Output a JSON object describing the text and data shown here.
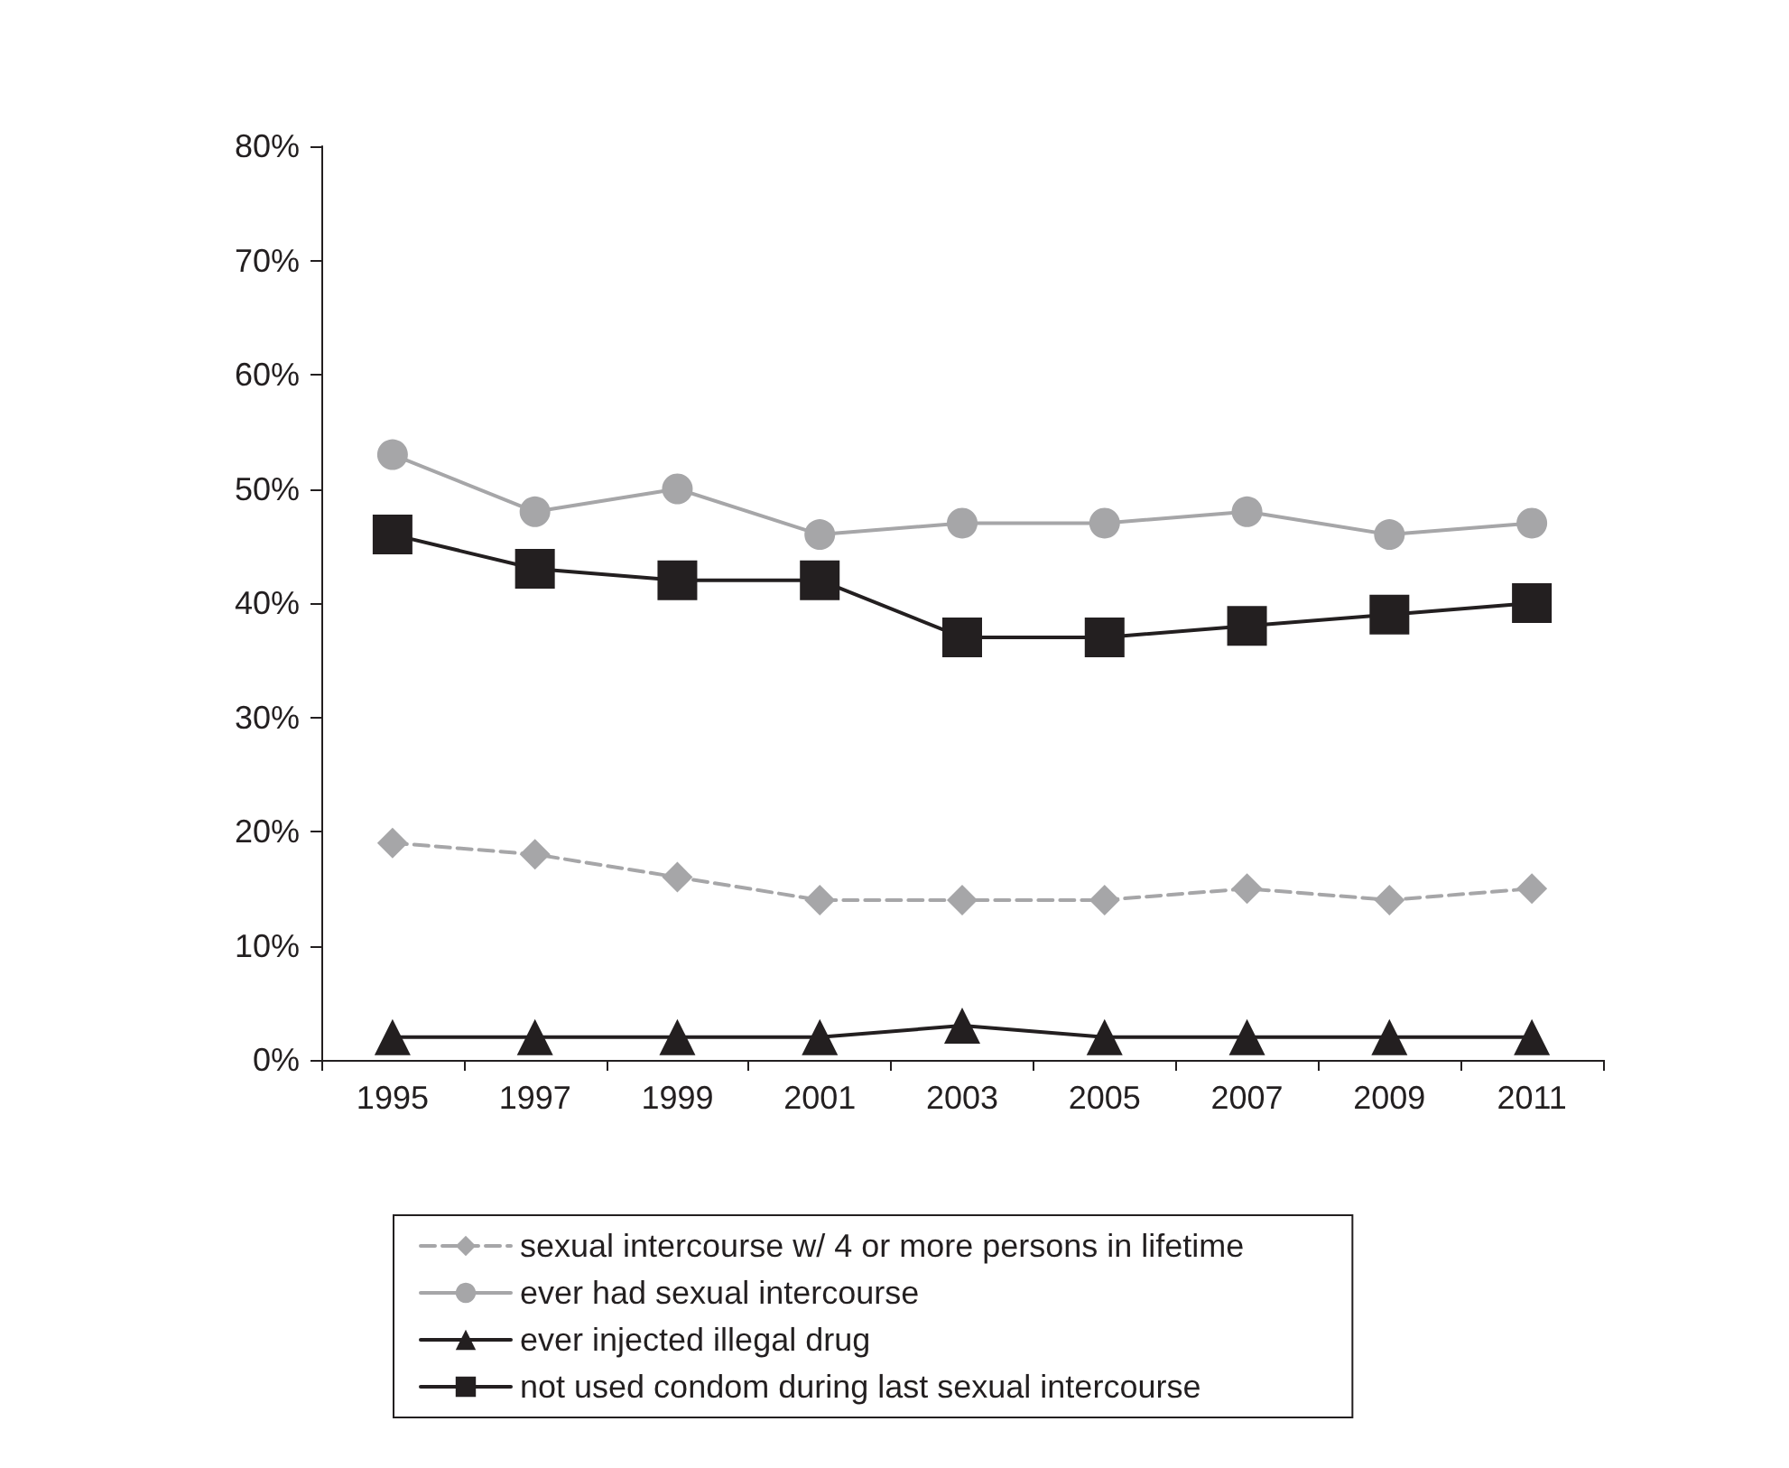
{
  "chart_data": {
    "type": "line",
    "categories": [
      "1995",
      "1997",
      "1999",
      "2001",
      "2003",
      "2005",
      "2007",
      "2009",
      "2011"
    ],
    "series": [
      {
        "name": "sexual intercourse w/ 4 or more persons in lifetime",
        "color": "#a6a6a8",
        "marker": "diamond",
        "line_style": "dashed",
        "values": [
          19,
          18,
          16,
          14,
          14,
          14,
          15,
          14,
          15
        ]
      },
      {
        "name": "ever had sexual intercourse",
        "color": "#a6a6a8",
        "marker": "circle",
        "line_style": "solid",
        "values": [
          53,
          48,
          50,
          46,
          47,
          47,
          48,
          46,
          47
        ]
      },
      {
        "name": "ever injected illegal drug",
        "color": "#231f20",
        "marker": "triangle",
        "line_style": "solid",
        "values": [
          2,
          2,
          2,
          2,
          3,
          2,
          2,
          2,
          2
        ]
      },
      {
        "name": "not used condom during last sexual intercourse",
        "color": "#231f20",
        "marker": "square",
        "line_style": "solid",
        "values": [
          46,
          43,
          42,
          42,
          37,
          37,
          38,
          39,
          40
        ]
      }
    ],
    "ylim": [
      0,
      80
    ],
    "yticks": [
      {
        "value": 0,
        "label": "0%"
      },
      {
        "value": 10,
        "label": "10%"
      },
      {
        "value": 20,
        "label": "20%"
      },
      {
        "value": 30,
        "label": "30%"
      },
      {
        "value": 40,
        "label": "40%"
      },
      {
        "value": 50,
        "label": "50%"
      },
      {
        "value": 60,
        "label": "60%"
      },
      {
        "value": 70,
        "label": "70%"
      },
      {
        "value": 80,
        "label": "80%"
      }
    ],
    "grid": false,
    "legend": "bottom"
  }
}
